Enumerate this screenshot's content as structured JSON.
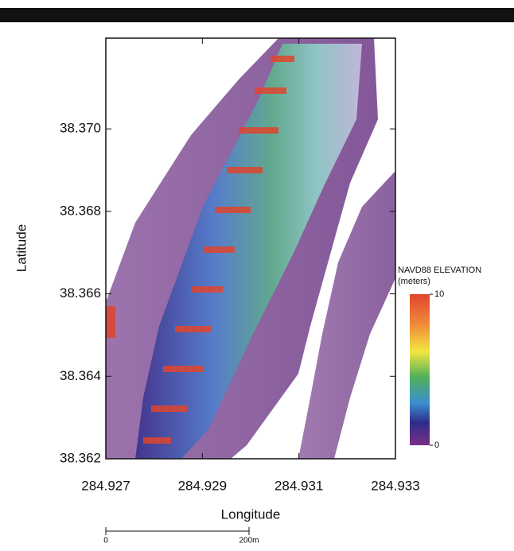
{
  "chart_data": {
    "type": "elevation-map",
    "xlabel": "Longitude",
    "ylabel": "Latitude",
    "xlim": [
      284.927,
      284.933
    ],
    "xticks": [
      284.927,
      284.929,
      284.931,
      284.933
    ],
    "ylim": [
      38.362,
      38.3722
    ],
    "yticks": [
      38.362,
      38.364,
      38.366,
      38.368,
      {
        "value": 38.37,
        "label": "38.370"
      }
    ],
    "colorbar": {
      "title": "NAVD88 ELEVATION",
      "unit": "(meters)",
      "lim": [
        0,
        10
      ],
      "ticks": [
        0,
        10
      ]
    },
    "scale_bar": {
      "labels": [
        "0",
        "200m"
      ]
    }
  }
}
